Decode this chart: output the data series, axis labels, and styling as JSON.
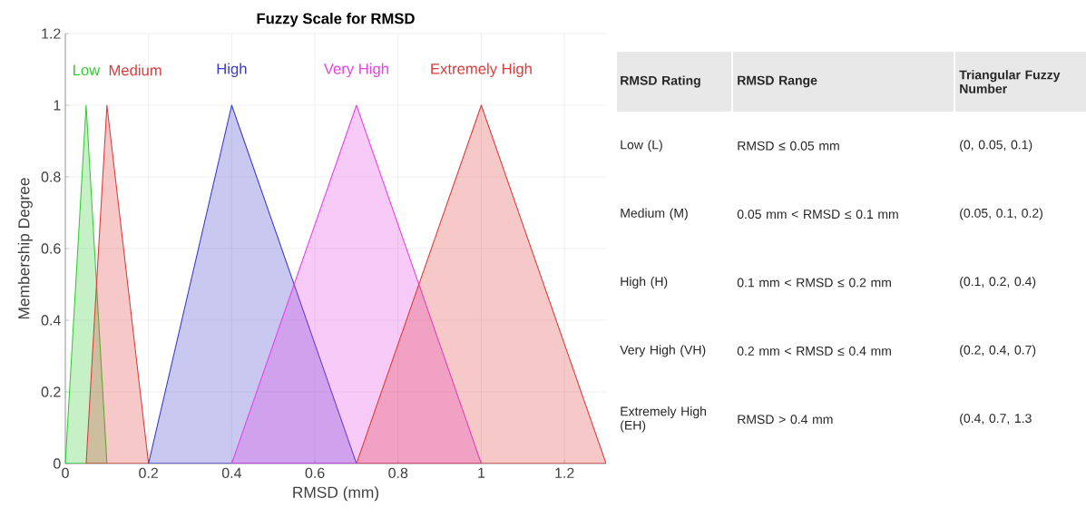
{
  "chart_data": [
    {
      "type": "area",
      "title": "Fuzzy Scale for RMSD",
      "xlabel": "RMSD (mm)",
      "ylabel": "Membership Degree",
      "xlim": [
        0,
        1.3
      ],
      "ylim": [
        0,
        1.2
      ],
      "xticks": [
        0,
        0.2,
        0.4,
        0.6,
        0.8,
        1,
        1.2
      ],
      "yticks": [
        0,
        0.2,
        0.4,
        0.6,
        0.8,
        1,
        1.2
      ],
      "grid": true,
      "series": [
        {
          "name": "Low",
          "color": "#33cc33",
          "x": [
            0,
            0.05,
            0.1
          ],
          "values": [
            0,
            1,
            0
          ]
        },
        {
          "name": "Medium",
          "color": "#dd3b3b",
          "x": [
            0.05,
            0.1,
            0.2
          ],
          "values": [
            0,
            1,
            0
          ]
        },
        {
          "name": "High",
          "color": "#3a3acc",
          "x": [
            0.2,
            0.4,
            0.7
          ],
          "values": [
            0,
            1,
            0
          ]
        },
        {
          "name": "Very High",
          "color": "#e640e6",
          "x": [
            0.4,
            0.7,
            1
          ],
          "values": [
            0,
            1,
            0
          ]
        },
        {
          "name": "Extremely High",
          "color": "#dd3b3b",
          "x": [
            0.7,
            1,
            1.3
          ],
          "values": [
            0,
            1,
            0
          ]
        }
      ]
    },
    {
      "type": "other",
      "annotations": [
        "RMSD Rating",
        "RMSD Range",
        "Triangular Fuzzy Number",
        "Low (L)",
        "RMSD ≤ 0.05 mm",
        "(0, 0.05, 0.1)",
        "Medium (M)",
        "0.05 mm < RMSD ≤ 0.1 mm",
        "(0.05, 0.1, 0.2)",
        "High (H)",
        "0.1 mm < RMSD ≤ 0.2 mm",
        "(0.1, 0.2, 0.4)",
        "Very High (VH)",
        "0.2 mm < RMSD ≤ 0.4 mm",
        "(0.2, 0.4, 0.7)",
        "Extremely High (EH)",
        "RMSD > 0.4 mm",
        "(0.4, 0.7, 1.3"
      ]
    }
  ]
}
